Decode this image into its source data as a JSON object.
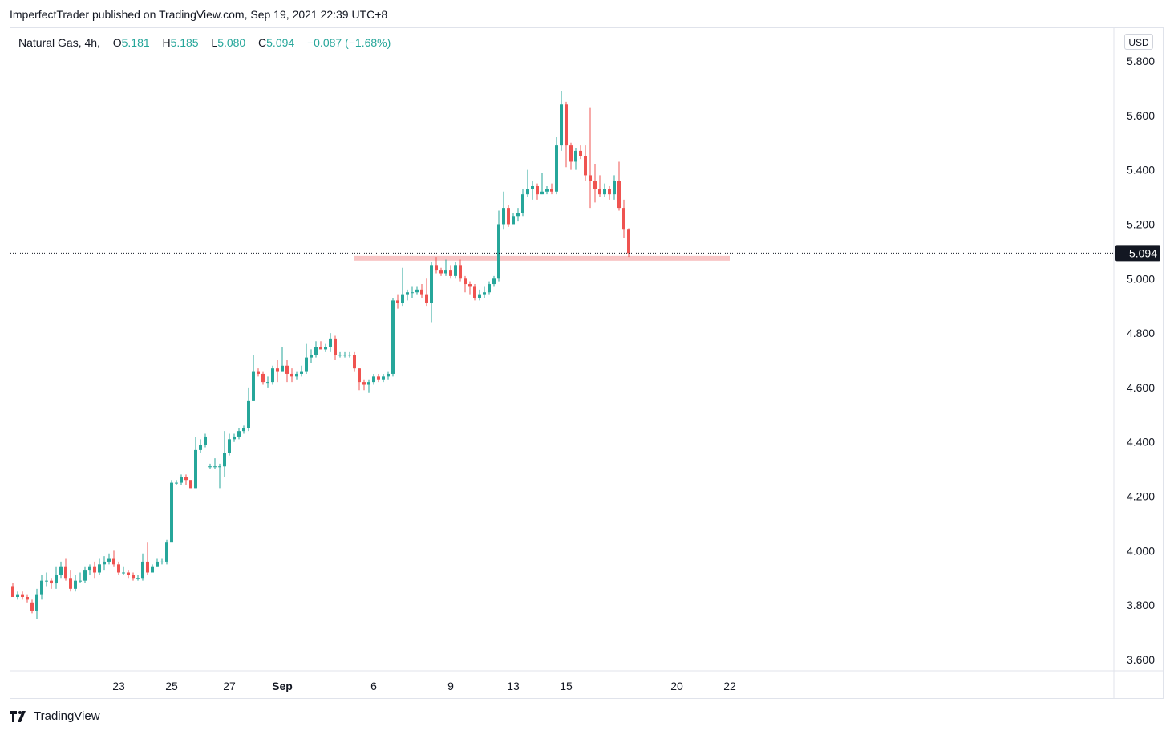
{
  "header": {
    "published_line": "ImperfectTrader published on TradingView.com, Sep 19, 2021 22:39 UTC+8"
  },
  "legend": {
    "symbol": "Natural Gas, 4h,",
    "o_label": "O",
    "o_value": "5.181",
    "h_label": "H",
    "h_value": "5.185",
    "l_label": "L",
    "l_value": "5.080",
    "c_label": "C",
    "c_value": "5.094",
    "change": "−0.087 (−1.68%)"
  },
  "currency": "USD",
  "brand": {
    "name": "TradingView",
    "icon": "tradingview-logo-icon"
  },
  "colors": {
    "up": "#26a69a",
    "down": "#ef5350",
    "support": "#f8c4c4",
    "price_label_bg": "#131722"
  },
  "chart_data": {
    "type": "candlestick",
    "title": "Natural Gas, 4h",
    "ylim": [
      3.55,
      5.88
    ],
    "y_ticks": [
      "3.600",
      "3.800",
      "4.000",
      "4.200",
      "4.400",
      "4.600",
      "4.800",
      "5.000",
      "5.200",
      "5.400",
      "5.600",
      "5.800"
    ],
    "x_ticks": [
      {
        "label": "23",
        "index": 22
      },
      {
        "label": "25",
        "index": 33
      },
      {
        "label": "27",
        "index": 45
      },
      {
        "label": "Sep",
        "index": 56
      },
      {
        "label": "6",
        "index": 75
      },
      {
        "label": "9",
        "index": 91
      },
      {
        "label": "13",
        "index": 104
      },
      {
        "label": "15",
        "index": 115
      },
      {
        "label": "20",
        "index": 138
      },
      {
        "label": "22",
        "index": 149
      }
    ],
    "current_price": "5.094",
    "current_value": 5.094,
    "support_level": 5.075,
    "support_start_index": 71,
    "support_end_index": 149,
    "candles": [
      [
        3.87,
        3.83,
        3.88,
        3.83
      ],
      [
        3.83,
        3.84,
        3.85,
        3.82
      ],
      [
        3.84,
        3.83,
        3.85,
        3.82
      ],
      [
        3.83,
        3.82,
        3.84,
        3.81
      ],
      [
        3.81,
        3.78,
        3.82,
        3.77
      ],
      [
        3.78,
        3.84,
        3.86,
        3.75
      ],
      [
        3.84,
        3.89,
        3.91,
        3.82
      ],
      [
        3.89,
        3.89,
        3.92,
        3.87
      ],
      [
        3.89,
        3.88,
        3.9,
        3.86
      ],
      [
        3.88,
        3.91,
        3.94,
        3.86
      ],
      [
        3.91,
        3.94,
        3.96,
        3.9
      ],
      [
        3.94,
        3.9,
        3.97,
        3.89
      ],
      [
        3.9,
        3.86,
        3.93,
        3.85
      ],
      [
        3.86,
        3.89,
        3.91,
        3.85
      ],
      [
        3.89,
        3.89,
        3.92,
        3.88
      ],
      [
        3.89,
        3.93,
        3.94,
        3.88
      ],
      [
        3.93,
        3.94,
        3.95,
        3.91
      ],
      [
        3.94,
        3.92,
        3.96,
        3.9
      ],
      [
        3.92,
        3.95,
        3.97,
        3.91
      ],
      [
        3.95,
        3.96,
        3.98,
        3.93
      ],
      [
        3.96,
        3.97,
        3.99,
        3.95
      ],
      [
        3.97,
        3.95,
        4.0,
        3.94
      ],
      [
        3.95,
        3.92,
        3.96,
        3.91
      ],
      [
        3.92,
        3.92,
        3.94,
        3.91
      ],
      [
        3.92,
        3.91,
        3.93,
        3.9
      ],
      [
        3.91,
        3.9,
        3.92,
        3.89
      ],
      [
        3.9,
        3.9,
        3.91,
        3.89
      ],
      [
        3.9,
        3.96,
        3.99,
        3.89
      ],
      [
        3.96,
        3.92,
        4.03,
        3.91
      ],
      [
        3.92,
        3.94,
        3.95,
        3.93
      ],
      [
        3.94,
        3.96,
        3.97,
        3.94
      ],
      [
        3.96,
        3.96,
        3.97,
        3.95
      ],
      [
        3.96,
        4.03,
        4.04,
        3.95
      ],
      [
        4.03,
        4.25,
        4.26,
        4.19
      ],
      [
        4.25,
        4.25,
        4.26,
        4.24
      ],
      [
        4.25,
        4.27,
        4.28,
        4.24
      ],
      [
        4.27,
        4.26,
        4.28,
        4.24
      ],
      [
        4.26,
        4.23,
        4.26,
        4.23
      ],
      [
        4.23,
        4.37,
        4.42,
        4.23
      ],
      [
        4.37,
        4.39,
        4.41,
        4.36
      ],
      [
        4.39,
        4.42,
        4.43,
        4.38
      ],
      [
        4.31,
        4.31,
        4.32,
        4.3
      ],
      [
        4.31,
        4.31,
        4.34,
        4.3
      ],
      [
        4.31,
        4.31,
        4.32,
        4.23
      ],
      [
        4.31,
        4.36,
        4.44,
        4.27
      ],
      [
        4.36,
        4.41,
        4.43,
        4.35
      ],
      [
        4.41,
        4.42,
        4.43,
        4.4
      ],
      [
        4.42,
        4.44,
        4.45,
        4.41
      ],
      [
        4.44,
        4.45,
        4.46,
        4.43
      ],
      [
        4.45,
        4.55,
        4.6,
        4.44
      ],
      [
        4.55,
        4.66,
        4.72,
        4.55
      ],
      [
        4.66,
        4.65,
        4.67,
        4.64
      ],
      [
        4.65,
        4.62,
        4.66,
        4.61
      ],
      [
        4.62,
        4.62,
        4.64,
        4.6
      ],
      [
        4.62,
        4.67,
        4.68,
        4.61
      ],
      [
        4.67,
        4.66,
        4.7,
        4.62
      ],
      [
        4.66,
        4.68,
        4.75,
        4.66
      ],
      [
        4.68,
        4.65,
        4.7,
        4.62
      ],
      [
        4.65,
        4.64,
        4.67,
        4.62
      ],
      [
        4.64,
        4.65,
        4.66,
        4.63
      ],
      [
        4.65,
        4.66,
        4.68,
        4.64
      ],
      [
        4.66,
        4.71,
        4.76,
        4.65
      ],
      [
        4.71,
        4.72,
        4.74,
        4.69
      ],
      [
        4.72,
        4.75,
        4.77,
        4.71
      ],
      [
        4.75,
        4.74,
        4.77,
        4.74
      ],
      [
        4.74,
        4.75,
        4.76,
        4.73
      ],
      [
        4.75,
        4.78,
        4.8,
        4.73
      ],
      [
        4.78,
        4.72,
        4.79,
        4.7
      ],
      [
        4.72,
        4.72,
        4.73,
        4.71
      ],
      [
        4.72,
        4.72,
        4.73,
        4.71
      ],
      [
        4.72,
        4.72,
        4.73,
        4.71
      ],
      [
        4.72,
        4.67,
        4.73,
        4.66
      ],
      [
        4.67,
        4.62,
        4.67,
        4.59
      ],
      [
        4.62,
        4.61,
        4.63,
        4.59
      ],
      [
        4.61,
        4.62,
        4.63,
        4.58
      ],
      [
        4.62,
        4.64,
        4.65,
        4.61
      ],
      [
        4.64,
        4.63,
        4.65,
        4.62
      ],
      [
        4.63,
        4.64,
        4.65,
        4.62
      ],
      [
        4.64,
        4.65,
        4.66,
        4.63
      ],
      [
        4.65,
        4.92,
        4.93,
        4.64
      ],
      [
        4.92,
        4.91,
        4.94,
        4.89
      ],
      [
        4.91,
        4.94,
        5.04,
        4.9
      ],
      [
        4.94,
        4.95,
        4.96,
        4.92
      ],
      [
        4.95,
        4.95,
        4.97,
        4.93
      ],
      [
        4.95,
        4.96,
        4.97,
        4.94
      ],
      [
        4.96,
        4.94,
        4.98,
        4.93
      ],
      [
        4.94,
        4.91,
        5.0,
        4.9
      ],
      [
        4.91,
        5.05,
        5.06,
        4.84
      ],
      [
        5.05,
        5.03,
        5.08,
        5.02
      ],
      [
        5.03,
        5.02,
        5.04,
        5.01
      ],
      [
        5.02,
        5.03,
        5.07,
        5.01
      ],
      [
        5.03,
        5.01,
        5.05,
        5.0
      ],
      [
        5.01,
        5.05,
        5.06,
        5.0
      ],
      [
        5.05,
        5.0,
        5.07,
        4.99
      ],
      [
        5.0,
        4.98,
        5.01,
        4.95
      ],
      [
        4.98,
        4.97,
        4.99,
        4.94
      ],
      [
        4.97,
        4.93,
        4.98,
        4.92
      ],
      [
        4.93,
        4.94,
        4.96,
        4.92
      ],
      [
        4.94,
        4.95,
        4.97,
        4.93
      ],
      [
        4.95,
        4.98,
        4.99,
        4.94
      ],
      [
        4.98,
        5.0,
        5.01,
        4.97
      ],
      [
        5.0,
        5.2,
        5.25,
        4.99
      ],
      [
        5.2,
        5.26,
        5.32,
        5.18
      ],
      [
        5.26,
        5.2,
        5.27,
        5.19
      ],
      [
        5.2,
        5.23,
        5.24,
        5.21
      ],
      [
        5.23,
        5.24,
        5.26,
        5.21
      ],
      [
        5.24,
        5.31,
        5.33,
        5.23
      ],
      [
        5.31,
        5.33,
        5.4,
        5.3
      ],
      [
        5.33,
        5.34,
        5.36,
        5.29
      ],
      [
        5.34,
        5.31,
        5.35,
        5.29
      ],
      [
        5.31,
        5.32,
        5.39,
        5.31
      ],
      [
        5.32,
        5.33,
        5.34,
        5.31
      ],
      [
        5.33,
        5.32,
        5.35,
        5.31
      ],
      [
        5.32,
        5.49,
        5.52,
        5.31
      ],
      [
        5.49,
        5.64,
        5.69,
        5.47
      ],
      [
        5.64,
        5.49,
        5.65,
        5.41
      ],
      [
        5.49,
        5.43,
        5.5,
        5.4
      ],
      [
        5.43,
        5.47,
        5.48,
        5.4
      ],
      [
        5.47,
        5.45,
        5.49,
        5.44
      ],
      [
        5.45,
        5.38,
        5.49,
        5.36
      ],
      [
        5.38,
        5.36,
        5.63,
        5.26
      ],
      [
        5.36,
        5.33,
        5.42,
        5.28
      ],
      [
        5.33,
        5.31,
        5.38,
        5.3
      ],
      [
        5.31,
        5.33,
        5.35,
        5.3
      ],
      [
        5.33,
        5.31,
        5.34,
        5.29
      ],
      [
        5.31,
        5.36,
        5.38,
        5.29
      ],
      [
        5.36,
        5.26,
        5.43,
        5.25
      ],
      [
        5.26,
        5.18,
        5.29,
        5.15
      ],
      [
        5.18,
        5.094,
        5.185,
        5.08
      ]
    ]
  }
}
